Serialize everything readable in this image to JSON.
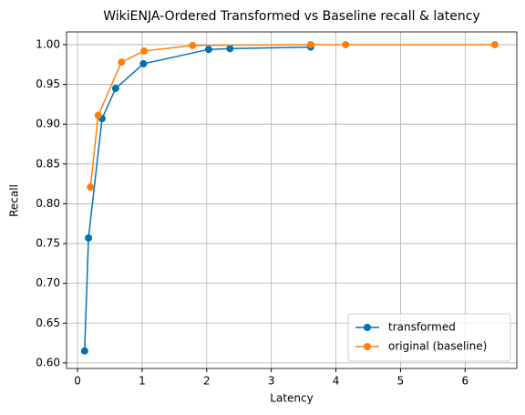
{
  "chart_data": {
    "type": "line",
    "title": "WikiENJA-Ordered Transformed vs Baseline recall & latency",
    "x_label": "Latency",
    "y_label": "Recall",
    "series": [
      {
        "name": "transformed",
        "color": "#0173b2",
        "x": [
          0.11,
          0.17,
          0.38,
          0.59,
          1.02,
          2.03,
          2.36,
          3.61
        ],
        "values": [
          0.615,
          0.757,
          0.907,
          0.945,
          0.976,
          0.994,
          0.995,
          0.997
        ]
      },
      {
        "name": "original (baseline)",
        "color": "#ff7f0e",
        "x": [
          0.2,
          0.32,
          0.68,
          1.03,
          1.78,
          3.61,
          4.15,
          6.46
        ],
        "values": [
          0.821,
          0.911,
          0.978,
          0.992,
          0.999,
          1.0,
          1.0,
          1.0
        ]
      }
    ],
    "xlim": [
      -0.17,
      6.8
    ],
    "xticks": [
      0,
      1,
      2,
      3,
      4,
      5,
      6
    ],
    "ylim": [
      0.593,
      1.016
    ],
    "yticks": [
      {
        "value": 0.6,
        "label": "0.60"
      },
      {
        "value": 0.65,
        "label": "0.65"
      },
      {
        "value": 0.7,
        "label": "0.70"
      },
      {
        "value": 0.75,
        "label": "0.75"
      },
      {
        "value": 0.8,
        "label": "0.80"
      },
      {
        "value": 0.85,
        "label": "0.85"
      },
      {
        "value": 0.9,
        "label": "0.90"
      },
      {
        "value": 0.95,
        "label": "0.95"
      },
      {
        "value": 1.0,
        "label": "1.00"
      }
    ],
    "grid": true,
    "legend": "lower right"
  }
}
